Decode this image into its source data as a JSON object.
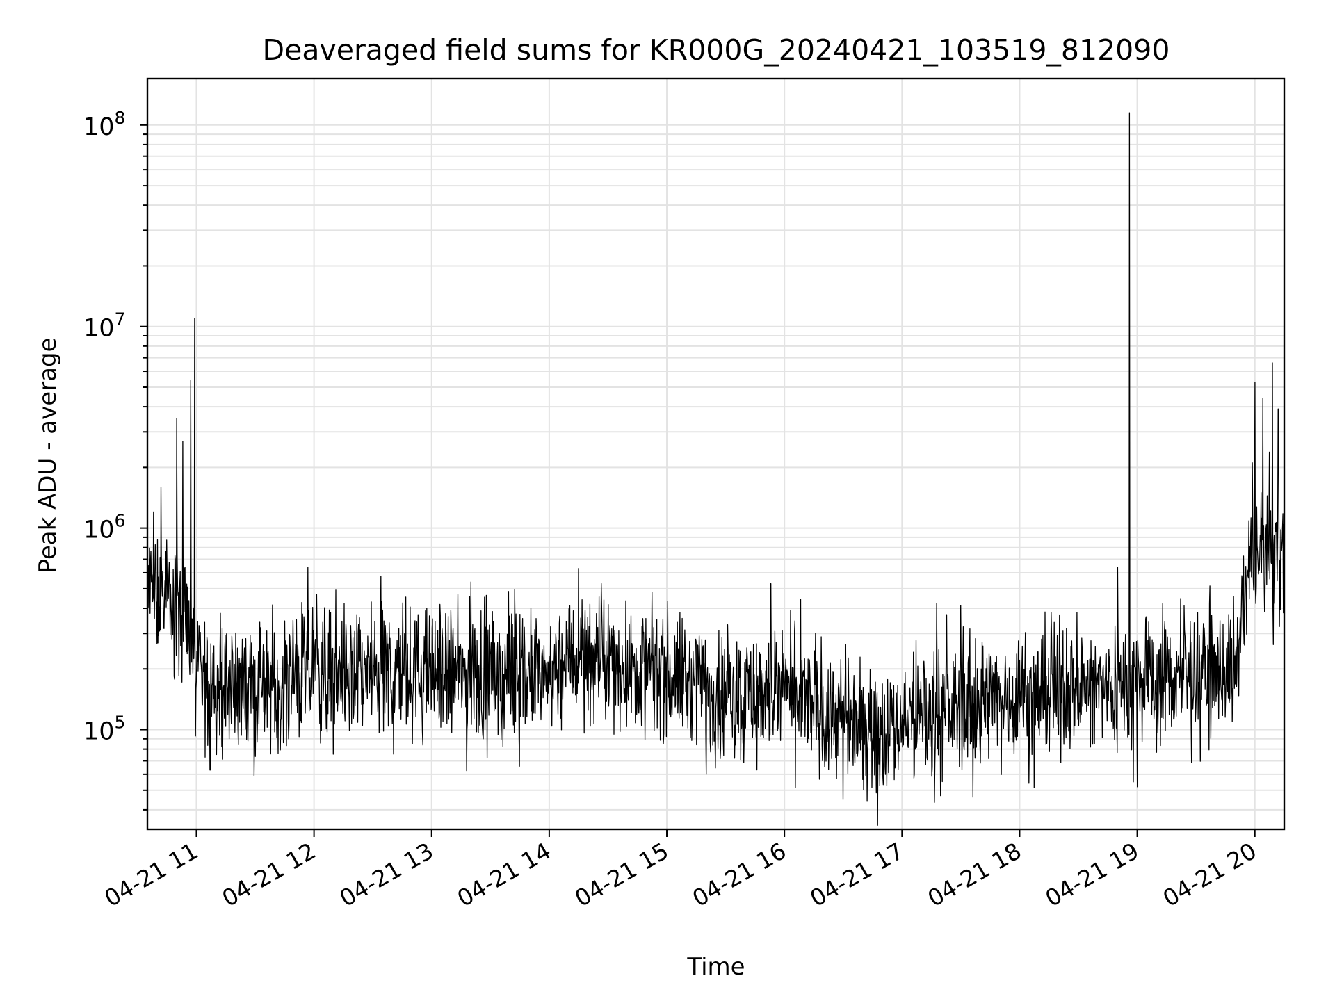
{
  "chart_data": {
    "type": "line",
    "title": "Deaveraged field sums for KR000G_20240421_103519_812090",
    "xlabel": "Time",
    "ylabel": "Peak ADU - average",
    "yscale": "log",
    "ylim": [
      32000,
      170000000
    ],
    "xlim": [
      "2024-04-21 10:35",
      "2024-04-21 20:15"
    ],
    "grid": true,
    "line_color": "#000000",
    "x_ticks": [
      {
        "label": "04-21 11",
        "time": "2024-04-21 11:00"
      },
      {
        "label": "04-21 12",
        "time": "2024-04-21 12:00"
      },
      {
        "label": "04-21 13",
        "time": "2024-04-21 13:00"
      },
      {
        "label": "04-21 14",
        "time": "2024-04-21 14:00"
      },
      {
        "label": "04-21 15",
        "time": "2024-04-21 15:00"
      },
      {
        "label": "04-21 16",
        "time": "2024-04-21 16:00"
      },
      {
        "label": "04-21 17",
        "time": "2024-04-21 17:00"
      },
      {
        "label": "04-21 18",
        "time": "2024-04-21 18:00"
      },
      {
        "label": "04-21 19",
        "time": "2024-04-21 19:00"
      },
      {
        "label": "04-21 20",
        "time": "2024-04-21 20:00"
      }
    ],
    "y_ticks": [
      {
        "value": 100000,
        "base": "10",
        "exp": "5"
      },
      {
        "value": 1000000,
        "base": "10",
        "exp": "6"
      },
      {
        "value": 10000000,
        "base": "10",
        "exp": "7"
      },
      {
        "value": 100000000,
        "base": "10",
        "exp": "8"
      }
    ],
    "series": [
      {
        "baseline_trend": [
          {
            "time": "2024-04-21 10:35",
            "value": 500000
          },
          {
            "time": "2024-04-21 10:55",
            "value": 350000
          },
          {
            "time": "2024-04-21 11:00",
            "value": 180000
          },
          {
            "time": "2024-04-21 11:30",
            "value": 160000
          },
          {
            "time": "2024-04-21 12:00",
            "value": 190000
          },
          {
            "time": "2024-04-21 13:00",
            "value": 190000
          },
          {
            "time": "2024-04-21 14:00",
            "value": 180000
          },
          {
            "time": "2024-04-21 14:15",
            "value": 230000
          },
          {
            "time": "2024-04-21 15:00",
            "value": 190000
          },
          {
            "time": "2024-04-21 15:30",
            "value": 150000
          },
          {
            "time": "2024-04-21 16:00",
            "value": 150000
          },
          {
            "time": "2024-04-21 16:45",
            "value": 100000
          },
          {
            "time": "2024-04-21 17:00",
            "value": 110000
          },
          {
            "time": "2024-04-21 18:00",
            "value": 150000
          },
          {
            "time": "2024-04-21 19:00",
            "value": 170000
          },
          {
            "time": "2024-04-21 19:50",
            "value": 200000
          },
          {
            "time": "2024-04-21 19:58",
            "value": 700000
          },
          {
            "time": "2024-04-21 20:15",
            "value": 750000
          }
        ],
        "spikes": [
          {
            "time": "2024-04-21 10:42",
            "value": 1600000
          },
          {
            "time": "2024-04-21 10:50",
            "value": 3500000
          },
          {
            "time": "2024-04-21 10:53",
            "value": 2700000
          },
          {
            "time": "2024-04-21 10:57",
            "value": 5400000
          },
          {
            "time": "2024-04-21 10:59",
            "value": 11000000
          },
          {
            "time": "2024-04-21 11:07",
            "value": 63000
          },
          {
            "time": "2024-04-21 13:20",
            "value": 540000
          },
          {
            "time": "2024-04-21 14:15",
            "value": 630000
          },
          {
            "time": "2024-04-21 15:20",
            "value": 60000
          },
          {
            "time": "2024-04-21 15:53",
            "value": 530000
          },
          {
            "time": "2024-04-21 16:30",
            "value": 45000
          },
          {
            "time": "2024-04-21 18:50",
            "value": 640000
          },
          {
            "time": "2024-04-21 18:56",
            "value": 115000000
          },
          {
            "time": "2024-04-21 18:58",
            "value": 55000
          },
          {
            "time": "2024-04-21 19:00",
            "value": 52000
          },
          {
            "time": "2024-04-21 20:00",
            "value": 5300000
          },
          {
            "time": "2024-04-21 20:04",
            "value": 4400000
          },
          {
            "time": "2024-04-21 20:09",
            "value": 6600000
          },
          {
            "time": "2024-04-21 20:12",
            "value": 3900000
          }
        ]
      }
    ]
  }
}
